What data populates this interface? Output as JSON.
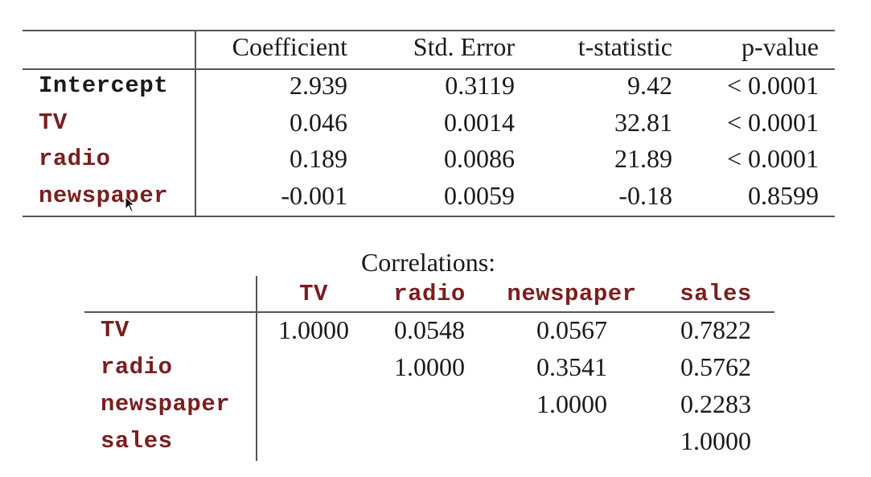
{
  "regression": {
    "columns": [
      "Coefficient",
      "Std. Error",
      "t-statistic",
      "p-value"
    ],
    "rows": [
      {
        "label": "Intercept",
        "values": [
          "2.939",
          "0.3119",
          "9.42",
          "< 0.0001"
        ]
      },
      {
        "label": "TV",
        "values": [
          "0.046",
          "0.0014",
          "32.81",
          "< 0.0001"
        ]
      },
      {
        "label": "radio",
        "values": [
          "0.189",
          "0.0086",
          "21.89",
          "< 0.0001"
        ]
      },
      {
        "label": "newspaper",
        "values": [
          "-0.001",
          "0.0059",
          "-0.18",
          "0.8599"
        ]
      }
    ]
  },
  "correlations": {
    "title": "Correlations:",
    "columns": [
      "TV",
      "radio",
      "newspaper",
      "sales"
    ],
    "rows": [
      {
        "label": "TV",
        "values": [
          "1.0000",
          "0.0548",
          "0.0567",
          "0.7822"
        ]
      },
      {
        "label": "radio",
        "values": [
          "",
          "1.0000",
          "0.3541",
          "0.5762"
        ]
      },
      {
        "label": "newspaper",
        "values": [
          "",
          "",
          "1.0000",
          "0.2283"
        ]
      },
      {
        "label": "sales",
        "values": [
          "",
          "",
          "",
          "1.0000"
        ]
      }
    ]
  },
  "colors": {
    "label_maroon": "#7a1e1e",
    "text": "#1a1a1a",
    "rule": "#555555"
  },
  "icons": {
    "cursor": "mouse-pointer-icon"
  }
}
